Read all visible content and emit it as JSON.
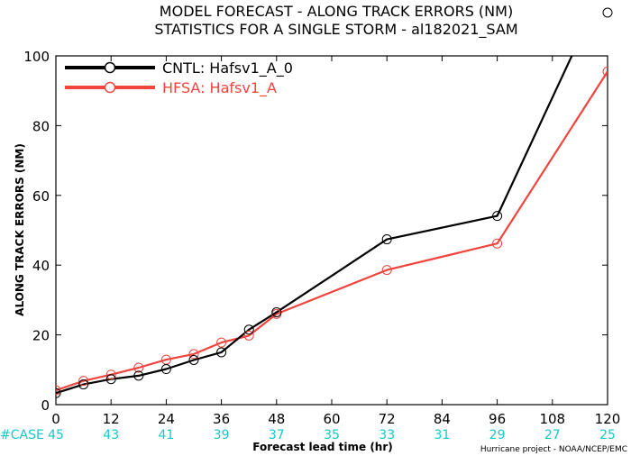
{
  "chart_data": {
    "type": "line",
    "title": "MODEL FORECAST - ALONG TRACK ERRORS (NM)",
    "subtitle": "STATISTICS FOR A SINGLE STORM - al182021_SAM",
    "xlabel": "Forecast lead time (hr)",
    "ylabel": "ALONG TRACK ERRORS (NM)",
    "xlim": [
      0,
      120
    ],
    "ylim": [
      0,
      100
    ],
    "xticks": [
      0,
      12,
      24,
      36,
      48,
      60,
      72,
      84,
      96,
      108,
      120
    ],
    "yticks": [
      0,
      20,
      40,
      60,
      80,
      100
    ],
    "grid": false,
    "legend_position": "top-left",
    "series": [
      {
        "name": "CNTL: Hafsv1_A_0",
        "color": "#000000",
        "x": [
          0,
          6,
          12,
          18,
          24,
          30,
          36,
          42,
          48,
          72,
          96,
          120
        ],
        "y": [
          3.3,
          5.8,
          7.3,
          8.3,
          10.2,
          12.8,
          15.0,
          21.5,
          26.5,
          47.4,
          54.1,
          122
        ]
      },
      {
        "name": "HFSA: Hafsv1_A",
        "color": "#f0443d",
        "x": [
          0,
          6,
          12,
          18,
          24,
          30,
          36,
          42,
          48,
          72,
          96,
          120
        ],
        "y": [
          4.1,
          6.8,
          8.6,
          10.6,
          12.9,
          14.5,
          17.8,
          19.8,
          26.0,
          38.6,
          46.2,
          95.5
        ]
      }
    ],
    "case_label": "#CASE",
    "case_counts": [
      "45",
      "43",
      "41",
      "39",
      "37",
      "35",
      "33",
      "31",
      "29",
      "27",
      "25"
    ],
    "case_color": "#16c8c8",
    "footer": "Hurricane project - NOAA/NCEP/EMC"
  }
}
